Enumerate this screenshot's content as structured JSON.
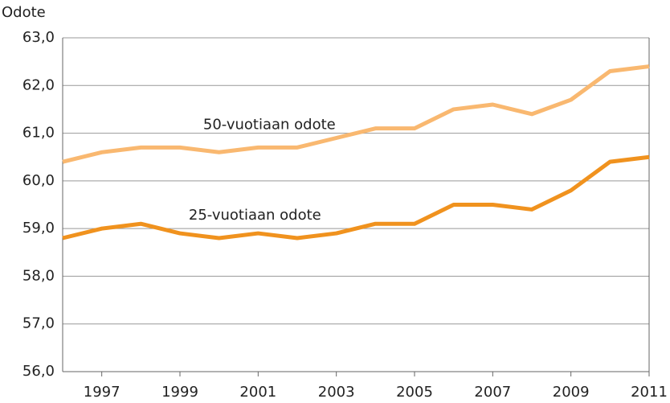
{
  "chart_data": {
    "type": "line",
    "y_label": "Odote",
    "x": [
      1996,
      1997,
      1998,
      1999,
      2000,
      2001,
      2002,
      2003,
      2004,
      2005,
      2006,
      2007,
      2008,
      2009,
      2010,
      2011
    ],
    "xlim": [
      1996,
      2011
    ],
    "xticks": [
      1997,
      1999,
      2001,
      2003,
      2005,
      2007,
      2009,
      2011
    ],
    "ylim": [
      56,
      63
    ],
    "yticks": [
      {
        "value": 56,
        "label": "56,0"
      },
      {
        "value": 57,
        "label": "57,0"
      },
      {
        "value": 58,
        "label": "58,0"
      },
      {
        "value": 59,
        "label": "59,0"
      },
      {
        "value": 60,
        "label": "60,0"
      },
      {
        "value": 61,
        "label": "61,0"
      },
      {
        "value": 62,
        "label": "62,0"
      },
      {
        "value": 63,
        "label": "63,0"
      }
    ],
    "grid": true,
    "series": [
      {
        "name": "50-vuotiaan odote",
        "color": "#f9b870",
        "values": [
          60.4,
          60.6,
          60.7,
          60.7,
          60.6,
          60.7,
          60.7,
          60.9,
          61.1,
          61.1,
          61.5,
          61.6,
          61.4,
          61.7,
          62.3,
          62.4
        ]
      },
      {
        "name": "25-vuotiaan odote",
        "color": "#f0921e",
        "values": [
          58.8,
          59.0,
          59.1,
          58.9,
          58.8,
          58.9,
          58.8,
          58.9,
          59.1,
          59.1,
          59.5,
          59.5,
          59.4,
          59.8,
          60.4,
          60.5
        ]
      }
    ]
  }
}
